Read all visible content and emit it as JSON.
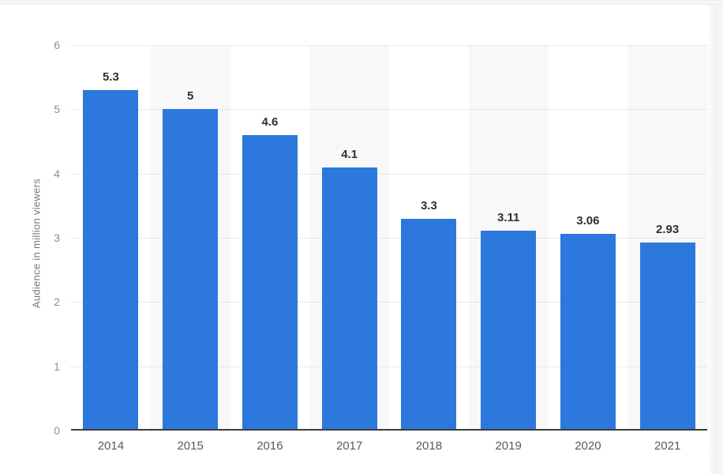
{
  "chart_data": {
    "type": "bar",
    "title": "",
    "xlabel": "",
    "ylabel": "Audience in million viewers",
    "categories": [
      "2014",
      "2015",
      "2016",
      "2017",
      "2018",
      "2019",
      "2020",
      "2021"
    ],
    "values": [
      5.3,
      5,
      4.6,
      4.1,
      3.3,
      3.11,
      3.06,
      2.93
    ],
    "value_labels": [
      "5.3",
      "5",
      "4.6",
      "4.1",
      "3.3",
      "3.11",
      "3.06",
      "2.93"
    ],
    "ylim": [
      0,
      6
    ],
    "yticks": [
      0,
      1,
      2,
      3,
      4,
      5,
      6
    ],
    "ytick_labels": [
      "0",
      "1",
      "2",
      "3",
      "4",
      "5",
      "6"
    ],
    "grid": "horizontal dotted lines at each integer tick",
    "legend": "none",
    "plot_bands": "alternating vertical column shading on 2015, 2017, 2019, 2021",
    "colors": {
      "bar": "#2d78dc",
      "band": "#f8f8f8",
      "gridline": "#d6d6d6",
      "axis_line": "#3d3d3d",
      "value_label": "#303030",
      "category_label": "#595959",
      "tick_label": "#8f8f8f",
      "axis_title": "#787878"
    }
  }
}
